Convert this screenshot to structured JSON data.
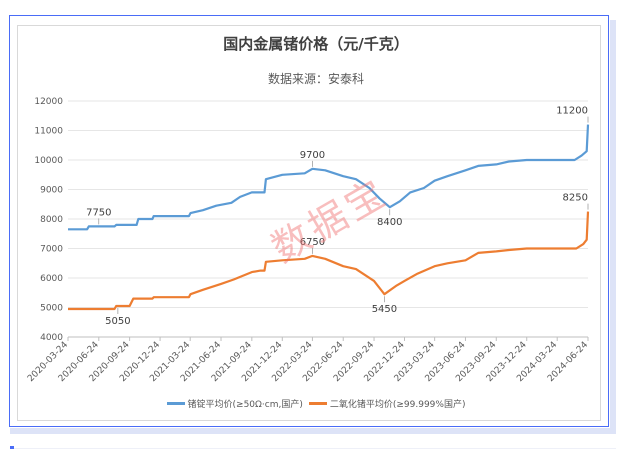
{
  "chart_data": {
    "type": "line",
    "title": "国内金属锗价格（元/千克）",
    "subtitle": "数据来源：安泰科",
    "xlabel": "",
    "ylabel": "",
    "ylim": [
      4000,
      12000
    ],
    "yticks": [
      "4000",
      "5000",
      "6000",
      "7000",
      "8000",
      "9000",
      "10000",
      "11000",
      "12000"
    ],
    "xticks": [
      "2020-03-24",
      "2020-06-24",
      "2020-09-24",
      "2020-12-24",
      "2021-03-24",
      "2021-06-24",
      "2021-09-24",
      "2021-12-24",
      "2022-03-24",
      "2022-06-24",
      "2022-09-24",
      "2022-12-24",
      "2023-03-24",
      "2023-06-24",
      "2023-09-24",
      "2023-12-24",
      "2024-03-24",
      "2024-06-24"
    ],
    "grid": true,
    "legend": "bottom",
    "series": [
      {
        "name": "锗锭平均价(≥50Ω·cm,国产)",
        "color": "#5b9bd5",
        "points": [
          [
            "2020-03-24",
            7650
          ],
          [
            "2020-05-20",
            7650
          ],
          [
            "2020-05-25",
            7750
          ],
          [
            "2020-08-10",
            7750
          ],
          [
            "2020-08-15",
            7800
          ],
          [
            "2020-10-15",
            7800
          ],
          [
            "2020-10-20",
            8000
          ],
          [
            "2020-12-01",
            8000
          ],
          [
            "2020-12-05",
            8100
          ],
          [
            "2021-03-20",
            8100
          ],
          [
            "2021-03-25",
            8200
          ],
          [
            "2021-05-01",
            8300
          ],
          [
            "2021-06-10",
            8450
          ],
          [
            "2021-07-25",
            8550
          ],
          [
            "2021-08-20",
            8750
          ],
          [
            "2021-09-24",
            8900
          ],
          [
            "2021-11-01",
            8900
          ],
          [
            "2021-11-05",
            9350
          ],
          [
            "2021-12-24",
            9500
          ],
          [
            "2022-03-01",
            9550
          ],
          [
            "2022-03-24",
            9700
          ],
          [
            "2022-05-01",
            9650
          ],
          [
            "2022-06-24",
            9450
          ],
          [
            "2022-08-01",
            9350
          ],
          [
            "2022-09-10",
            9050
          ],
          [
            "2022-10-10",
            8700
          ],
          [
            "2022-11-10",
            8400
          ],
          [
            "2022-12-10",
            8600
          ],
          [
            "2023-01-10",
            8900
          ],
          [
            "2023-02-20",
            9050
          ],
          [
            "2023-03-24",
            9300
          ],
          [
            "2023-05-01",
            9450
          ],
          [
            "2023-06-24",
            9650
          ],
          [
            "2023-08-01",
            9800
          ],
          [
            "2023-09-24",
            9850
          ],
          [
            "2023-11-01",
            9950
          ],
          [
            "2023-12-24",
            10000
          ],
          [
            "2024-03-24",
            10000
          ],
          [
            "2024-05-15",
            10000
          ],
          [
            "2024-06-05",
            10150
          ],
          [
            "2024-06-20",
            10300
          ],
          [
            "2024-06-24",
            11200
          ]
        ]
      },
      {
        "name": "二氧化锗平均价(≥99.999%国产)",
        "color": "#ed7d31",
        "points": [
          [
            "2020-03-24",
            4950
          ],
          [
            "2020-08-10",
            4950
          ],
          [
            "2020-08-15",
            5050
          ],
          [
            "2020-09-24",
            5050
          ],
          [
            "2020-10-05",
            5300
          ],
          [
            "2020-12-01",
            5300
          ],
          [
            "2020-12-05",
            5350
          ],
          [
            "2021-03-20",
            5350
          ],
          [
            "2021-03-25",
            5450
          ],
          [
            "2021-05-01",
            5600
          ],
          [
            "2021-06-24",
            5800
          ],
          [
            "2021-08-01",
            5950
          ],
          [
            "2021-09-24",
            6200
          ],
          [
            "2021-10-20",
            6250
          ],
          [
            "2021-11-01",
            6250
          ],
          [
            "2021-11-05",
            6550
          ],
          [
            "2021-12-24",
            6600
          ],
          [
            "2022-03-01",
            6650
          ],
          [
            "2022-03-24",
            6750
          ],
          [
            "2022-05-01",
            6650
          ],
          [
            "2022-06-24",
            6400
          ],
          [
            "2022-08-01",
            6300
          ],
          [
            "2022-09-24",
            5900
          ],
          [
            "2022-10-25",
            5450
          ],
          [
            "2022-12-01",
            5750
          ],
          [
            "2022-12-24",
            5900
          ],
          [
            "2023-02-01",
            6150
          ],
          [
            "2023-03-24",
            6400
          ],
          [
            "2023-05-01",
            6500
          ],
          [
            "2023-06-24",
            6600
          ],
          [
            "2023-08-01",
            6850
          ],
          [
            "2023-09-24",
            6900
          ],
          [
            "2023-11-01",
            6950
          ],
          [
            "2023-12-24",
            7000
          ],
          [
            "2024-03-24",
            7000
          ],
          [
            "2024-05-20",
            7000
          ],
          [
            "2024-06-10",
            7150
          ],
          [
            "2024-06-20",
            7300
          ],
          [
            "2024-06-24",
            8250
          ]
        ]
      }
    ],
    "data_labels": [
      {
        "date": "2020-06-24",
        "value": 7750,
        "text": "7750",
        "position": "above"
      },
      {
        "date": "2022-03-24",
        "value": 9700,
        "text": "9700",
        "position": "above"
      },
      {
        "date": "2022-11-10",
        "value": 8400,
        "text": "8400",
        "position": "below"
      },
      {
        "date": "2024-06-24",
        "value": 11200,
        "text": "11200",
        "position": "above"
      },
      {
        "date": "2020-08-20",
        "value": 5050,
        "text": "5050",
        "position": "below"
      },
      {
        "date": "2022-03-24",
        "value": 6750,
        "text": "6750",
        "position": "above"
      },
      {
        "date": "2022-10-25",
        "value": 5450,
        "text": "5450",
        "position": "below"
      },
      {
        "date": "2024-06-24",
        "value": 8250,
        "text": "8250",
        "position": "above"
      }
    ]
  },
  "watermark": "数据宝"
}
